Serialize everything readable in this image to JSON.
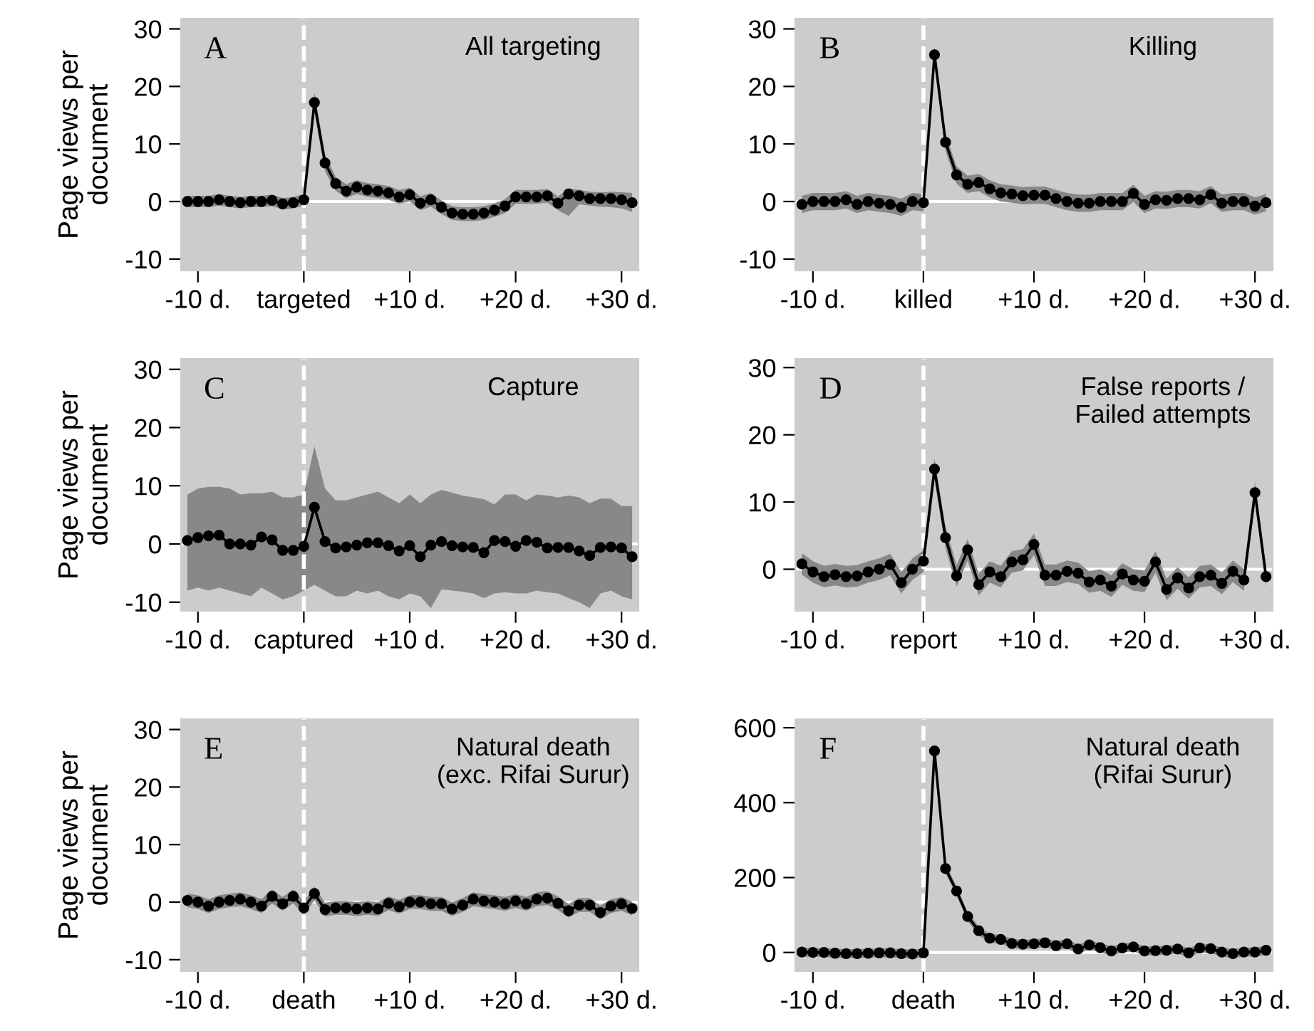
{
  "chart_data": [
    {
      "type": "line",
      "title": "All targeting",
      "annotations": [
        "A"
      ],
      "ylabel": "Page views per\ndocument",
      "x": [
        -11,
        -10,
        -9,
        -8,
        -7,
        -6,
        -5,
        -4,
        -3,
        -2,
        -1,
        0,
        1,
        2,
        3,
        4,
        5,
        6,
        7,
        8,
        9,
        10,
        11,
        12,
        13,
        14,
        15,
        16,
        17,
        18,
        19,
        20,
        21,
        22,
        23,
        24,
        25,
        26,
        27,
        28,
        29,
        30,
        31
      ],
      "series": [
        {
          "color": "#000000",
          "values": [
            0,
            0,
            0,
            0.3,
            0,
            -0.2,
            0,
            0,
            0.2,
            -0.4,
            -0.2,
            0.3,
            17.2,
            6.7,
            3.1,
            1.8,
            2.5,
            2,
            1.8,
            1.5,
            0.8,
            1.2,
            -0.3,
            0.3,
            -1,
            -2,
            -2.2,
            -2.2,
            -2,
            -1.5,
            -0.8,
            0.8,
            0.8,
            0.8,
            1,
            -0.3,
            1.3,
            1,
            0.5,
            0.5,
            0.5,
            0.3,
            -0.2
          ],
          "lower": [
            -1,
            -1,
            -1,
            -0.7,
            -1,
            -1.2,
            -1,
            -1,
            -0.8,
            -1.4,
            -1.2,
            -0.7,
            15.5,
            5.2,
            1.9,
            0.6,
            1.3,
            0.8,
            0.6,
            0.3,
            -0.4,
            0,
            -1.5,
            -0.9,
            -2.2,
            -3.2,
            -3.4,
            -3.4,
            -3.2,
            -2.7,
            -2,
            -0.4,
            -0.4,
            -0.4,
            -0.2,
            -1.5,
            -2.5,
            -0.5,
            -0.7,
            -0.9,
            -1,
            -1.2,
            -1.8
          ],
          "upper": [
            1,
            1,
            1,
            1.3,
            1,
            0.8,
            1,
            1,
            1.2,
            0.6,
            0.8,
            1.3,
            18.9,
            8.2,
            4.3,
            3,
            3.7,
            3.2,
            3,
            2.7,
            2,
            2.4,
            0.9,
            1.5,
            0.2,
            -0.8,
            -1,
            -1,
            -0.8,
            -0.3,
            0.4,
            2,
            2,
            2,
            2.2,
            0.9,
            2.3,
            2,
            1.7,
            1.6,
            1.7,
            1.6,
            1.5
          ]
        }
      ],
      "xlim": [
        -11.6,
        31.6
      ],
      "ylim": [
        -12,
        31.8
      ],
      "yticks": [
        -10,
        0,
        10,
        20,
        30
      ],
      "xticks": [
        {
          "value": -10,
          "label": "-10 d."
        },
        {
          "value": 0,
          "label": "targeted"
        },
        {
          "value": 10,
          "label": "+10 d."
        },
        {
          "value": 20,
          "label": "+20 d."
        },
        {
          "value": 30,
          "label": "+30 d."
        }
      ],
      "ref_lines": [
        {
          "axis": "x",
          "value": 0,
          "color": "#ffffff",
          "line_style": "dashed"
        },
        {
          "axis": "y",
          "value": 0,
          "color": "#ffffff",
          "line_style": "solid"
        }
      ],
      "marker": "circle",
      "line_style": "solid",
      "grid": false
    },
    {
      "type": "line",
      "title": "Killing",
      "annotations": [
        "B"
      ],
      "x": [
        -11,
        -10,
        -9,
        -8,
        -7,
        -6,
        -5,
        -4,
        -3,
        -2,
        -1,
        0,
        1,
        2,
        3,
        4,
        5,
        6,
        7,
        8,
        9,
        10,
        11,
        12,
        13,
        14,
        15,
        16,
        17,
        18,
        19,
        20,
        21,
        22,
        23,
        24,
        25,
        26,
        27,
        28,
        29,
        30,
        31
      ],
      "series": [
        {
          "color": "#000000",
          "values": [
            -0.5,
            0,
            0,
            0,
            0.3,
            -0.5,
            0,
            -0.3,
            -0.5,
            -1,
            0,
            -0.2,
            25.5,
            10.3,
            4.6,
            3,
            3.3,
            2.2,
            1.5,
            1.3,
            1,
            1.1,
            1.1,
            0.5,
            0,
            -0.3,
            -0.3,
            0,
            0,
            0,
            1.4,
            -0.5,
            0.3,
            0.2,
            0.5,
            0.5,
            0.3,
            1.2,
            -0.3,
            0,
            0,
            -0.8,
            -0.2
          ],
          "lower": [
            -2,
            -1.5,
            -1.5,
            -1.5,
            -1.2,
            -2,
            -1.5,
            -1.8,
            -2,
            -2.5,
            -1.5,
            -1.7,
            24,
            8.8,
            3.1,
            1.5,
            1.8,
            0.7,
            0,
            -0.2,
            -0.5,
            -0.4,
            -0.4,
            -1,
            -1.5,
            -1.8,
            -1.8,
            -1.5,
            -1.5,
            -1.5,
            -0.1,
            -2,
            -1.2,
            -1.3,
            -1,
            -1,
            -1.2,
            -0.3,
            -1.8,
            -1.5,
            -1.5,
            -2.3,
            -1.7
          ],
          "upper": [
            1,
            1.5,
            1.5,
            1.5,
            1.8,
            1,
            1.5,
            1.2,
            1,
            0.5,
            1.5,
            1.3,
            27,
            11.8,
            6.1,
            4.5,
            4.8,
            3.7,
            3,
            2.8,
            2.5,
            2.6,
            2.6,
            2,
            1.5,
            1.2,
            1.2,
            1.5,
            1.5,
            1.5,
            2.9,
            1,
            1.8,
            1.7,
            2,
            2,
            1.8,
            2.7,
            1.2,
            1.5,
            1.5,
            0.7,
            1.3
          ]
        }
      ],
      "xlim": [
        -11.6,
        31.6
      ],
      "ylim": [
        -12,
        31.8
      ],
      "yticks": [
        -10,
        0,
        10,
        20,
        30
      ],
      "xticks": [
        {
          "value": -10,
          "label": "-10 d."
        },
        {
          "value": 0,
          "label": "killed"
        },
        {
          "value": 10,
          "label": "+10 d."
        },
        {
          "value": 20,
          "label": "+20 d."
        },
        {
          "value": 30,
          "label": "+30 d."
        }
      ],
      "ref_lines": [
        {
          "axis": "x",
          "value": 0,
          "color": "#ffffff",
          "line_style": "dashed"
        },
        {
          "axis": "y",
          "value": 0,
          "color": "#ffffff",
          "line_style": "solid"
        }
      ],
      "marker": "circle",
      "line_style": "solid",
      "grid": false
    },
    {
      "type": "line",
      "title": "Capture",
      "annotations": [
        "C"
      ],
      "ylabel": "Page views per\ndocument",
      "x": [
        -11,
        -10,
        -9,
        -8,
        -7,
        -6,
        -5,
        -4,
        -3,
        -2,
        -1,
        0,
        1,
        2,
        3,
        4,
        5,
        6,
        7,
        8,
        9,
        10,
        11,
        12,
        13,
        14,
        15,
        16,
        17,
        18,
        19,
        20,
        21,
        22,
        23,
        24,
        25,
        26,
        27,
        28,
        29,
        30,
        31
      ],
      "series": [
        {
          "color": "#000000",
          "values": [
            0.6,
            1.1,
            1.4,
            1.5,
            0,
            0,
            -0.2,
            1.2,
            0.7,
            -1.1,
            -1.1,
            -0.4,
            6.3,
            0.4,
            -0.7,
            -0.5,
            -0.2,
            0.2,
            0.2,
            -0.3,
            -1.2,
            -0.3,
            -2.2,
            -0.2,
            0.4,
            -0.3,
            -0.5,
            -0.6,
            -1.5,
            0.6,
            0.4,
            -0.4,
            0.6,
            0.3,
            -0.7,
            -0.6,
            -0.6,
            -1.2,
            -2,
            -0.6,
            -0.5,
            -0.7,
            -2.2
          ],
          "lower": [
            -8,
            -7.5,
            -8,
            -7.5,
            -8,
            -8.5,
            -9,
            -7.5,
            -8.5,
            -9.5,
            -9,
            -8,
            -7,
            -8,
            -9,
            -9,
            -8,
            -8.5,
            -8,
            -9,
            -9.5,
            -8.5,
            -9,
            -11,
            -7.8,
            -8,
            -8.2,
            -8.5,
            -9.3,
            -8.5,
            -8.3,
            -8.5,
            -8.5,
            -8,
            -8.3,
            -8.5,
            -9.3,
            -10,
            -11,
            -8.5,
            -8,
            -9,
            -9.5
          ],
          "upper": [
            8.5,
            9.5,
            9.8,
            9.8,
            9.5,
            8.5,
            8.7,
            8.7,
            9,
            8,
            8,
            8.5,
            16.8,
            9.5,
            7.5,
            7.5,
            8,
            8.5,
            9,
            8,
            7,
            8.5,
            7,
            8.5,
            9.3,
            8.8,
            8.3,
            8,
            7.7,
            6.8,
            8.5,
            8.5,
            7.5,
            8.5,
            8.3,
            8,
            8.3,
            8,
            7,
            7.8,
            7.8,
            6.5,
            6.5
          ]
        }
      ],
      "xlim": [
        -11.6,
        31.6
      ],
      "ylim": [
        -11.5,
        31.8
      ],
      "yticks": [
        -10,
        0,
        10,
        20,
        30
      ],
      "xticks": [
        {
          "value": -10,
          "label": "-10 d."
        },
        {
          "value": 0,
          "label": "captured"
        },
        {
          "value": 10,
          "label": "+10 d."
        },
        {
          "value": 20,
          "label": "+20 d."
        },
        {
          "value": 30,
          "label": "+30 d."
        }
      ],
      "ref_lines": [
        {
          "axis": "x",
          "value": 0,
          "color": "#ffffff",
          "line_style": "dashed"
        },
        {
          "axis": "y",
          "value": 0,
          "color": "#ffffff",
          "line_style": "solid"
        }
      ],
      "marker": "circle",
      "line_style": "solid",
      "grid": false
    },
    {
      "type": "line",
      "title": "False reports /\nFailed attempts",
      "annotations": [
        "D"
      ],
      "x": [
        -11,
        -10,
        -9,
        -8,
        -7,
        -6,
        -5,
        -4,
        -3,
        -2,
        -1,
        0,
        1,
        2,
        3,
        4,
        5,
        6,
        7,
        8,
        9,
        10,
        11,
        12,
        13,
        14,
        15,
        16,
        17,
        18,
        19,
        20,
        21,
        22,
        23,
        24,
        25,
        26,
        27,
        28,
        29,
        30,
        31
      ],
      "series": [
        {
          "color": "#000000",
          "values": [
            0.8,
            -0.4,
            -1.1,
            -0.8,
            -1.1,
            -1,
            -0.4,
            0,
            0.7,
            -2,
            0,
            1.2,
            14.9,
            4.7,
            -1,
            2.9,
            -2.3,
            -0.4,
            -1.1,
            1.1,
            1.4,
            3.7,
            -0.9,
            -0.9,
            -0.3,
            -0.6,
            -1.9,
            -1.6,
            -2.5,
            -0.7,
            -1.6,
            -1.8,
            1.1,
            -3,
            -1.3,
            -2.8,
            -1.1,
            -0.9,
            -2.1,
            -0.3,
            -1.6,
            11.4,
            -1.1
          ],
          "lower": [
            -0.8,
            -2,
            -2.7,
            -2.4,
            -2.7,
            -2.6,
            -2,
            -1.6,
            -0.9,
            -3.6,
            -1.6,
            -0.4,
            13.3,
            3.1,
            -2.6,
            1.3,
            -3.9,
            -2,
            -2.7,
            -0.5,
            -0.2,
            2.1,
            -2.5,
            -2.5,
            -1.9,
            -2.2,
            -3.5,
            -3.2,
            -4.1,
            -2.3,
            -3.2,
            -3.4,
            -0.5,
            -4.6,
            -2.9,
            -4.4,
            -2.7,
            -2.5,
            -3.7,
            -1.9,
            -3.2,
            9.8,
            -2.7
          ],
          "upper": [
            2.4,
            1.2,
            0.5,
            0.8,
            0.5,
            0.6,
            1.2,
            1.6,
            2.3,
            -0.4,
            1.6,
            2.8,
            16.5,
            6.3,
            0.6,
            4.5,
            -0.7,
            1.2,
            0.5,
            2.7,
            3,
            5.3,
            0.7,
            0.7,
            1.3,
            1,
            -0.3,
            0,
            -0.9,
            0.9,
            0,
            -0.2,
            2.7,
            -1.4,
            0.3,
            -1.2,
            0.5,
            0.7,
            -0.5,
            1.3,
            0,
            13,
            0.5
          ]
        }
      ],
      "xlim": [
        -11.6,
        31.6
      ],
      "ylim": [
        -6.2,
        31.3
      ],
      "yticks": [
        0,
        10,
        20,
        30
      ],
      "xticks": [
        {
          "value": -10,
          "label": "-10 d."
        },
        {
          "value": 0,
          "label": "report"
        },
        {
          "value": 10,
          "label": "+10 d."
        },
        {
          "value": 20,
          "label": "+20 d."
        },
        {
          "value": 30,
          "label": "+30 d."
        }
      ],
      "ref_lines": [
        {
          "axis": "x",
          "value": 0,
          "color": "#ffffff",
          "line_style": "dashed"
        },
        {
          "axis": "y",
          "value": 0,
          "color": "#ffffff",
          "line_style": "solid"
        }
      ],
      "marker": "circle",
      "line_style": "solid",
      "grid": false
    },
    {
      "type": "line",
      "title": "Natural death\n(exc. Rifai Surur)",
      "annotations": [
        "E"
      ],
      "ylabel": "Page views per\ndocument",
      "x": [
        -11,
        -10,
        -9,
        -8,
        -7,
        -6,
        -5,
        -4,
        -3,
        -2,
        -1,
        0,
        1,
        2,
        3,
        4,
        5,
        6,
        7,
        8,
        9,
        10,
        11,
        12,
        13,
        14,
        15,
        16,
        17,
        18,
        19,
        20,
        21,
        22,
        23,
        24,
        25,
        26,
        27,
        28,
        29,
        30,
        31
      ],
      "series": [
        {
          "color": "#000000",
          "values": [
            0.3,
            0,
            -0.7,
            0,
            0.3,
            0.5,
            0,
            -0.7,
            1,
            -0.3,
            1,
            -1,
            1.5,
            -1.3,
            -1,
            -1,
            -1.2,
            -1,
            -1.2,
            -0.2,
            -0.8,
            0,
            0,
            -0.3,
            -0.3,
            -1.2,
            -0.5,
            0.5,
            0.2,
            0,
            -0.3,
            0.2,
            -0.3,
            0.5,
            0.7,
            -0.2,
            -1.5,
            -0.5,
            -0.5,
            -1.8,
            -0.7,
            -0.3,
            -1.1
          ],
          "lower": [
            -0.9,
            -1.2,
            -1.9,
            -1.2,
            -0.9,
            -0.7,
            -1.2,
            -1.9,
            -0.2,
            -1.5,
            -0.2,
            -2.2,
            0.3,
            -2.5,
            -2.2,
            -2.2,
            -2.4,
            -2.2,
            -2.4,
            -1.4,
            -2,
            -1.2,
            -1.2,
            -1.5,
            -1.5,
            -2.4,
            -1.7,
            -0.7,
            -1,
            -1.2,
            -1.5,
            -1,
            -1.5,
            -0.7,
            -0.5,
            -1.4,
            -2.7,
            -1.7,
            -1.7,
            -3,
            -1.9,
            -1.5,
            -2.3
          ],
          "upper": [
            1.5,
            1.2,
            0.5,
            1.2,
            1.5,
            1.7,
            1.2,
            0.5,
            2.2,
            0.9,
            2.2,
            0.2,
            2.7,
            -0.1,
            0.2,
            0.2,
            0,
            0.2,
            0,
            1,
            0.4,
            1.2,
            1.2,
            0.9,
            0.9,
            0,
            0.7,
            1.7,
            1.4,
            1.2,
            0.9,
            1.4,
            0.9,
            1.7,
            1.9,
            1,
            -0.3,
            0.7,
            0.7,
            -0.6,
            0.5,
            0.9,
            0.1
          ]
        }
      ],
      "xlim": [
        -11.6,
        31.6
      ],
      "ylim": [
        -12,
        31.8
      ],
      "yticks": [
        -10,
        0,
        10,
        20,
        30
      ],
      "xticks": [
        {
          "value": -10,
          "label": "-10 d."
        },
        {
          "value": 0,
          "label": "death"
        },
        {
          "value": 10,
          "label": "+10 d."
        },
        {
          "value": 20,
          "label": "+20 d."
        },
        {
          "value": 30,
          "label": "+30 d."
        }
      ],
      "ref_lines": [
        {
          "axis": "x",
          "value": 0,
          "color": "#ffffff",
          "line_style": "dashed"
        },
        {
          "axis": "y",
          "value": 0,
          "color": "#ffffff",
          "line_style": "solid"
        }
      ],
      "marker": "circle",
      "line_style": "solid",
      "grid": false
    },
    {
      "type": "line",
      "title": "Natural death\n(Rifai Surur)",
      "annotations": [
        "F"
      ],
      "x": [
        -11,
        -10,
        -9,
        -8,
        -7,
        -6,
        -5,
        -4,
        -3,
        -2,
        -1,
        0,
        1,
        2,
        3,
        4,
        5,
        6,
        7,
        8,
        9,
        10,
        11,
        12,
        13,
        14,
        15,
        16,
        17,
        18,
        19,
        20,
        21,
        22,
        23,
        24,
        25,
        26,
        27,
        28,
        29,
        30,
        31
      ],
      "series": [
        {
          "color": "#000000",
          "values": [
            1,
            0,
            0,
            -2,
            -3,
            -3,
            -2,
            -1,
            -1,
            -3,
            -4,
            -1,
            538,
            224,
            164,
            96,
            58,
            38,
            35,
            24,
            22,
            23,
            26,
            18,
            23,
            9,
            20,
            13,
            4,
            12,
            15,
            4,
            5,
            6,
            9,
            -1,
            12,
            10,
            1,
            -3,
            1,
            1,
            6
          ],
          "lower": [
            -11,
            -12,
            -12,
            -14,
            -15,
            -15,
            -14,
            -13,
            -13,
            -15,
            -16,
            -13,
            526,
            212,
            152,
            84,
            46,
            26,
            23,
            12,
            10,
            11,
            14,
            6,
            11,
            -3,
            8,
            1,
            -8,
            0,
            3,
            -8,
            -7,
            -6,
            -3,
            -13,
            0,
            -2,
            -11,
            -15,
            -11,
            -11,
            -6
          ],
          "upper": [
            13,
            12,
            12,
            10,
            9,
            9,
            10,
            11,
            11,
            9,
            8,
            11,
            550,
            236,
            176,
            108,
            70,
            50,
            47,
            36,
            34,
            35,
            38,
            30,
            35,
            21,
            32,
            25,
            16,
            24,
            27,
            16,
            17,
            18,
            21,
            11,
            24,
            22,
            13,
            9,
            13,
            13,
            18
          ]
        }
      ],
      "xlim": [
        -11.6,
        31.6
      ],
      "ylim": [
        -50,
        623
      ],
      "yticks": [
        0,
        200,
        400,
        600
      ],
      "xticks": [
        {
          "value": -10,
          "label": "-10 d."
        },
        {
          "value": 0,
          "label": "death"
        },
        {
          "value": 10,
          "label": "+10 d."
        },
        {
          "value": 20,
          "label": "+20 d."
        },
        {
          "value": 30,
          "label": "+30 d."
        }
      ],
      "ref_lines": [
        {
          "axis": "x",
          "value": 0,
          "color": "#ffffff",
          "line_style": "dashed"
        },
        {
          "axis": "y",
          "value": 0,
          "color": "#ffffff",
          "line_style": "solid"
        }
      ],
      "marker": "circle",
      "line_style": "solid",
      "grid": false
    }
  ]
}
